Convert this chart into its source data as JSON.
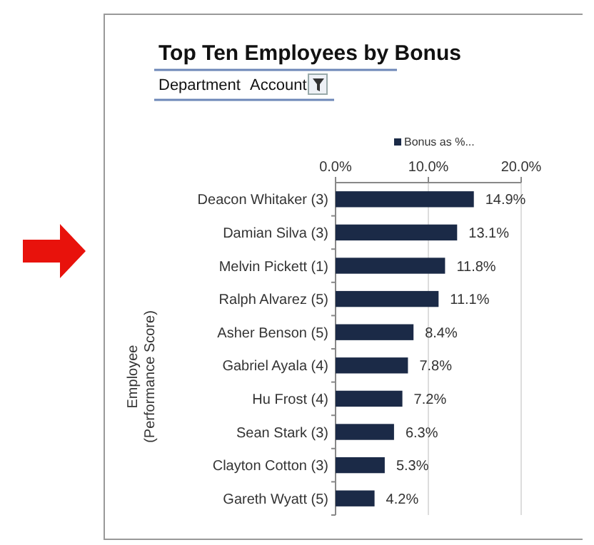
{
  "chart_data": {
    "type": "bar",
    "orientation": "horizontal",
    "title": "Top Ten Employees by Bonus",
    "ylabel": "Employee\n(Performance Score)",
    "annotations": [
      "Department",
      "Account"
    ],
    "categories": [
      "Deacon Whitaker (3)",
      "Damian Silva (3)",
      "Melvin Pickett (1)",
      "Ralph Alvarez (5)",
      "Asher Benson (5)",
      "Gabriel Ayala (4)",
      "Hu Frost (4)",
      "Sean Stark (3)",
      "Clayton Cotton (3)",
      "Gareth Wyatt (5)"
    ],
    "series": [
      {
        "name": "Bonus as %...",
        "color": "#1b2a47",
        "values": [
          14.9,
          13.1,
          11.8,
          11.1,
          8.4,
          7.8,
          7.2,
          6.3,
          5.3,
          4.2
        ],
        "value_labels": [
          "14.9%",
          "13.1%",
          "11.8%",
          "11.1%",
          "8.4%",
          "7.8%",
          "7.2%",
          "6.3%",
          "5.3%",
          "4.2%"
        ]
      }
    ],
    "xlim": [
      0,
      20
    ],
    "xticks": [
      {
        "value": 0,
        "label": "0.0%"
      },
      {
        "value": 10,
        "label": "10.0%"
      },
      {
        "value": 20,
        "label": "20.0%"
      }
    ],
    "grid": "x",
    "legend": "top"
  }
}
